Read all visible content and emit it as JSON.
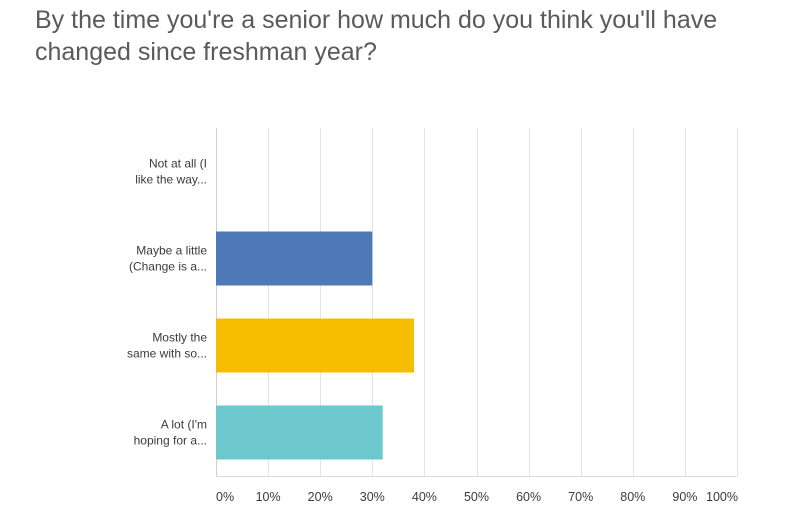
{
  "chart_data": {
    "type": "bar",
    "orientation": "horizontal",
    "title": "By the time you're a senior how much do you think you'll have changed since freshman year?",
    "categories": [
      [
        "Not at all (I",
        "like the way..."
      ],
      [
        "Maybe a little",
        "(Change is a..."
      ],
      [
        "Mostly the",
        "same with so..."
      ],
      [
        "A lot (I'm",
        "hoping for a..."
      ]
    ],
    "values": [
      0,
      30,
      38,
      32
    ],
    "colors": [
      "#4e79b7",
      "#4e79b7",
      "#f7bd00",
      "#6cc8cc"
    ],
    "xlim": [
      0,
      100
    ],
    "xticks": [
      "0%",
      "10%",
      "20%",
      "30%",
      "40%",
      "50%",
      "60%",
      "70%",
      "80%",
      "90%",
      "100%"
    ],
    "grid": true,
    "xlabel": "",
    "ylabel": ""
  }
}
